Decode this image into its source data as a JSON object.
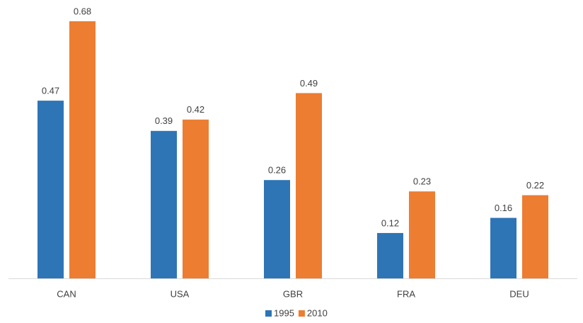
{
  "chart_data": {
    "type": "bar",
    "categories": [
      "CAN",
      "USA",
      "GBR",
      "FRA",
      "DEU"
    ],
    "series": [
      {
        "name": "1995",
        "color": "#2e75b6",
        "values": [
          0.47,
          0.39,
          0.26,
          0.12,
          0.16
        ]
      },
      {
        "name": "2010",
        "color": "#ed7d31",
        "values": [
          0.68,
          0.42,
          0.49,
          0.23,
          0.22
        ]
      }
    ],
    "data_labels": true,
    "legend": "bottom"
  }
}
